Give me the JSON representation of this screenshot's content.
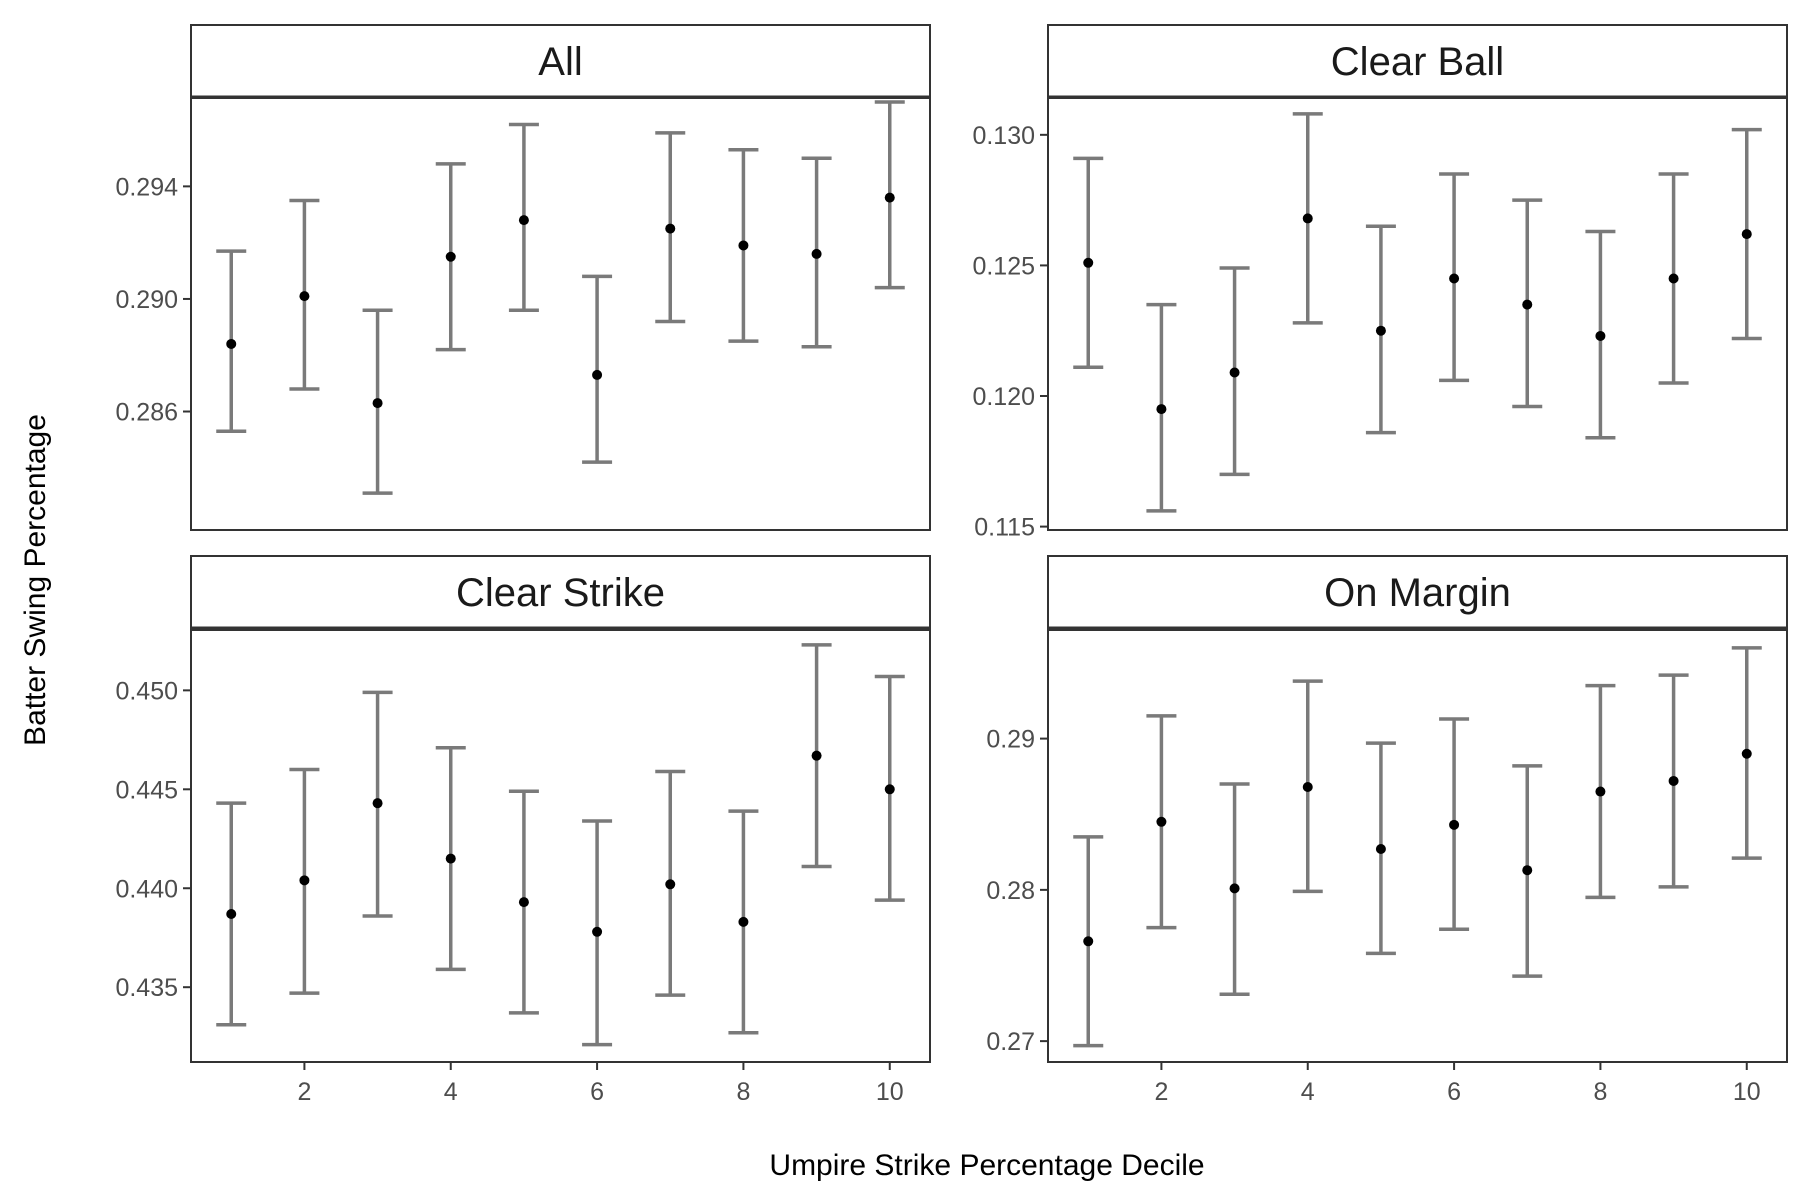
{
  "chart_data": {
    "type": "scatter",
    "subtype": "faceted-errorbar",
    "xlabel": "Umpire Strike Percentage Decile",
    "ylabel": "Batter Swing Percentage",
    "x_ticks": [
      2,
      4,
      6,
      8,
      10
    ],
    "xlim": [
      0.45,
      10.55
    ],
    "grid": false,
    "legend": "none",
    "colors": {
      "point": "#000000",
      "errorbar": "#7a7a7a",
      "panel_border": "#333333",
      "strip_fill": "#ffffff"
    },
    "facets": [
      {
        "label": "All",
        "ylim": [
          0.28179,
          0.29714
        ],
        "y_ticks": [
          0.286,
          0.29,
          0.294
        ],
        "y_tick_labels": [
          "0.286",
          "0.290",
          "0.294"
        ],
        "x": [
          1,
          2,
          3,
          4,
          5,
          6,
          7,
          8,
          9,
          10
        ],
        "y": [
          0.2884,
          0.2901,
          0.2863,
          0.2915,
          0.2928,
          0.2873,
          0.2925,
          0.2919,
          0.2916,
          0.2936
        ],
        "lower": [
          0.2853,
          0.2868,
          0.2831,
          0.2882,
          0.2896,
          0.2842,
          0.2892,
          0.2885,
          0.2883,
          0.2904
        ],
        "upper": [
          0.2917,
          0.2935,
          0.2896,
          0.2948,
          0.2962,
          0.2908,
          0.2959,
          0.2953,
          0.295,
          0.297
        ]
      },
      {
        "label": "Clear Ball",
        "ylim": [
          0.11487,
          0.13141
        ],
        "y_ticks": [
          0.115,
          0.12,
          0.125,
          0.13
        ],
        "y_tick_labels": [
          "0.115",
          "0.120",
          "0.125",
          "0.130"
        ],
        "x": [
          1,
          2,
          3,
          4,
          5,
          6,
          7,
          8,
          9,
          10
        ],
        "y": [
          0.1251,
          0.1195,
          0.1209,
          0.1268,
          0.1225,
          0.1245,
          0.1235,
          0.1223,
          0.1245,
          0.1262
        ],
        "lower": [
          0.1211,
          0.1156,
          0.117,
          0.1228,
          0.1186,
          0.1206,
          0.1196,
          0.1184,
          0.1205,
          0.1222
        ],
        "upper": [
          0.1291,
          0.1235,
          0.1249,
          0.1308,
          0.1265,
          0.1285,
          0.1275,
          0.1263,
          0.1285,
          0.1302
        ]
      },
      {
        "label": "Clear Strike",
        "ylim": [
          0.43122,
          0.45305
        ],
        "y_ticks": [
          0.435,
          0.44,
          0.445,
          0.45
        ],
        "y_tick_labels": [
          "0.435",
          "0.440",
          "0.445",
          "0.450"
        ],
        "x": [
          1,
          2,
          3,
          4,
          5,
          6,
          7,
          8,
          9,
          10
        ],
        "y": [
          0.4387,
          0.4404,
          0.4443,
          0.4415,
          0.4393,
          0.4378,
          0.4402,
          0.4383,
          0.4467,
          0.445
        ],
        "lower": [
          0.4331,
          0.4347,
          0.4386,
          0.4359,
          0.4337,
          0.4321,
          0.4346,
          0.4327,
          0.4411,
          0.4394
        ],
        "upper": [
          0.4443,
          0.446,
          0.4499,
          0.4471,
          0.4449,
          0.4434,
          0.4459,
          0.4439,
          0.4523,
          0.4507
        ]
      },
      {
        "label": "On Margin",
        "ylim": [
          0.26862,
          0.29718
        ],
        "y_ticks": [
          0.27,
          0.28,
          0.29
        ],
        "y_tick_labels": [
          "0.27",
          "0.28",
          "0.29"
        ],
        "x": [
          1,
          2,
          3,
          4,
          5,
          6,
          7,
          8,
          9,
          10
        ],
        "y": [
          0.2766,
          0.2845,
          0.2801,
          0.2868,
          0.2827,
          0.2843,
          0.2813,
          0.2865,
          0.2872,
          0.289
        ],
        "lower": [
          0.2697,
          0.2775,
          0.2731,
          0.2799,
          0.2758,
          0.2774,
          0.2743,
          0.2795,
          0.2802,
          0.2821
        ],
        "upper": [
          0.2835,
          0.2915,
          0.287,
          0.2938,
          0.2897,
          0.2913,
          0.2882,
          0.2935,
          0.2942,
          0.296
        ]
      }
    ]
  }
}
